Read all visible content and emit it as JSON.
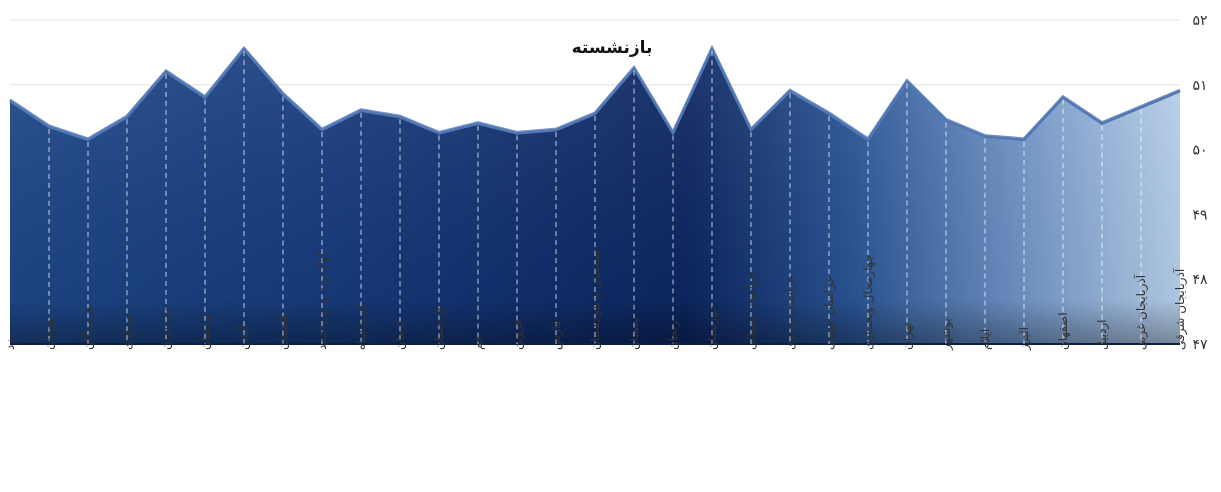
{
  "chart_data": {
    "type": "area",
    "title": "بازنشسته",
    "categories": [
      "یزد",
      "همدان",
      "هرمزگان",
      "مرکزی",
      "مازندران",
      "لرستان",
      "گیلان",
      "گلستان",
      "کهگیلویه و بویراحمد",
      "کرمانشاه",
      "کرمان",
      "کردستان",
      "قم",
      "قزوین",
      "فارس",
      "سیستان و بلوچستان",
      "سمنان",
      "زنجان",
      "خوزستان",
      "خراسان شمالی",
      "خراسان رضوی",
      "خراسان جنوبی",
      "چهارمحال وبختیاری",
      "تهران",
      "بوشهر",
      "ایلام",
      "البرز",
      "اصفهان",
      "اردبیل",
      "آذربایجان غربی",
      "آذربایجان شرقی"
    ],
    "values": [
      50.75,
      50.35,
      50.15,
      50.5,
      51.2,
      50.8,
      51.55,
      50.85,
      50.3,
      50.6,
      50.5,
      50.25,
      50.4,
      50.25,
      50.3,
      50.55,
      51.25,
      50.25,
      51.55,
      50.3,
      50.9,
      50.55,
      50.15,
      51.05,
      50.45,
      50.2,
      50.15,
      50.8,
      50.4,
      50.65,
      50.9
    ],
    "ylim": [
      47,
      52
    ],
    "yticks": [
      "۴۷",
      "۴۸",
      "۴۹",
      "۵۰",
      "۵۱",
      "۵۲"
    ],
    "grid": true,
    "colors": {
      "fill_dark": "#0c2660",
      "fill_mid": "#1d4787",
      "fill_light": "#b7d0eb",
      "edge": "#4f78b8",
      "dash": "#ffffff",
      "grid": "#e4e4e4"
    }
  }
}
